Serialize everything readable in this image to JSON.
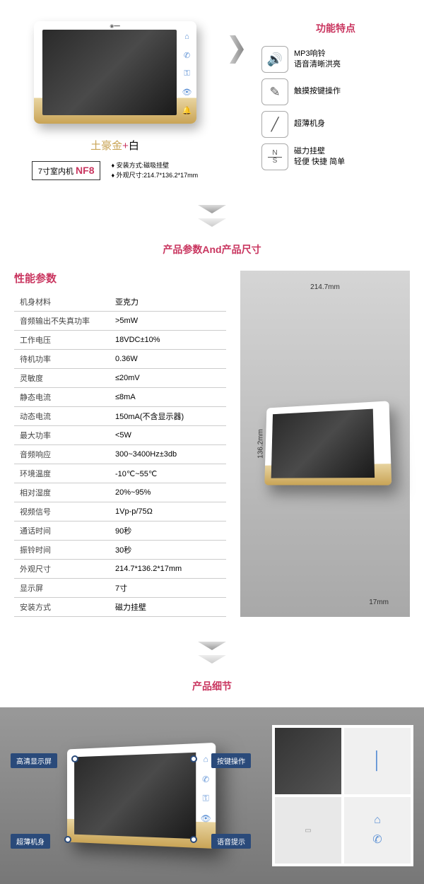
{
  "section1": {
    "color_label_gold": "土豪金",
    "color_label_plus": "+",
    "color_label_white": "白",
    "model_prefix": "7寸室内机",
    "model": "NF8",
    "spec_line1": "♦ 安装方式:磁吸挂壁",
    "spec_line2": "♦ 外观尺寸:214.7*136.2*17mm",
    "features_title": "功能特点",
    "features": [
      {
        "icon": "🔊",
        "text1": "MP3响铃",
        "text2": "语音清晰洪亮"
      },
      {
        "icon": "✎",
        "text1": "触摸按键操作",
        "text2": ""
      },
      {
        "icon": "╱",
        "text1": "超薄机身",
        "text2": ""
      },
      {
        "icon": "N/S",
        "text1": "磁力挂壁",
        "text2": "轻便 快捷 简单"
      }
    ]
  },
  "section2": {
    "title": "产品参数And产品尺寸",
    "spec_header": "性能参数",
    "specs": [
      [
        "机身材料",
        "亚克力"
      ],
      [
        "音频输出不失真功率",
        ">5mW"
      ],
      [
        "工作电压",
        "18VDC±10%"
      ],
      [
        "待机功率",
        "0.36W"
      ],
      [
        "灵敏度",
        "≤20mV"
      ],
      [
        "静态电流",
        "≤8mA"
      ],
      [
        "动态电流",
        "150mA(不含显示器)"
      ],
      [
        "最大功率",
        "<5W"
      ],
      [
        "音频响应",
        "300~3400Hz±3db"
      ],
      [
        "环境温度",
        "-10℃~55℃"
      ],
      [
        "相对湿度",
        "20%~95%"
      ],
      [
        "视频信号",
        "1Vp-p/75Ω"
      ],
      [
        "通话时间",
        "90秒"
      ],
      [
        "振铃时间",
        "30秒"
      ],
      [
        "外观尺寸",
        "214.7*136.2*17mm"
      ],
      [
        "显示屏",
        "7寸"
      ],
      [
        "安装方式",
        "磁力挂壁"
      ]
    ],
    "dim_w": "214.7mm",
    "dim_h": "136.2mm",
    "dim_d": "17mm"
  },
  "section3": {
    "title": "产品细节",
    "callouts": [
      "高清显示屏",
      "超薄机身",
      "按键操作",
      "语音提示"
    ]
  },
  "colors": {
    "accent": "#c9355f",
    "gold": "#c9a456",
    "icon_blue": "#5a8fd4"
  }
}
